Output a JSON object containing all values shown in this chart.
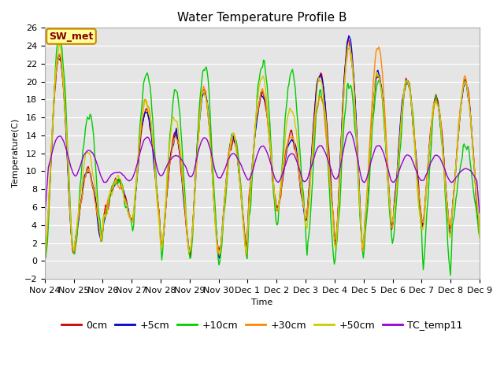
{
  "title": "Water Temperature Profile B",
  "xlabel": "Time",
  "ylabel": "Temperature(C)",
  "ylim": [
    -2,
    26
  ],
  "yticks": [
    -2,
    0,
    2,
    4,
    6,
    8,
    10,
    12,
    14,
    16,
    18,
    20,
    22,
    24,
    26
  ],
  "plot_bg_color": "#e5e5e5",
  "series_colors": {
    "0cm": "#cc0000",
    "+5cm": "#0000cc",
    "+10cm": "#00cc00",
    "+30cm": "#ff8800",
    "+50cm": "#cccc00",
    "TC_temp11": "#9900cc"
  },
  "annotation_text": "SW_met",
  "annotation_color": "#880000",
  "annotation_bg": "#ffff99",
  "annotation_border": "#cc8800",
  "x_tick_labels": [
    "Nov 24",
    "Nov 25",
    "Nov 26",
    "Nov 27",
    "Nov 28",
    "Nov 29",
    "Nov 30",
    "Dec 1",
    "Dec 2",
    "Dec 3",
    "Dec 4",
    "Dec 5",
    "Dec 6",
    "Dec 7",
    "Dec 8",
    "Dec 9"
  ],
  "line_width": 1.0,
  "font_family": "monospace",
  "font_size": 8,
  "title_fontsize": 11
}
